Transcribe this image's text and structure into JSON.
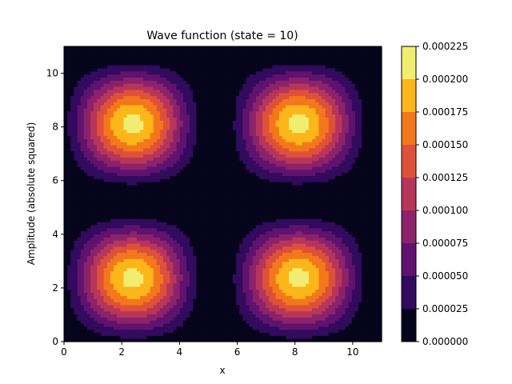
{
  "chart_data": {
    "type": "contourf",
    "title": "Wave function (state = 10)",
    "xlabel": "x",
    "ylabel": "Amplitude (absolute squared)",
    "xlim": [
      0,
      11
    ],
    "ylim": [
      0,
      11
    ],
    "x_ticks": [
      0,
      2,
      4,
      6,
      8,
      10
    ],
    "y_ticks": [
      0,
      2,
      4,
      6,
      8,
      10
    ],
    "field": {
      "form": "A * sin^2(pi*(x+0.5)/5.75) * sin^2(pi*(y+0.5)/5.75)",
      "peak_value": 0.0002081,
      "peaks": [
        [
          2.0,
          2.0
        ],
        [
          9.0,
          2.0
        ],
        [
          2.0,
          9.0
        ],
        [
          9.0,
          9.0
        ]
      ]
    },
    "levels": [
      0.0,
      2.5e-05,
      5e-05,
      7.5e-05,
      0.0001,
      0.000125,
      0.00015,
      0.000175,
      0.0002,
      0.000225
    ],
    "colorbar_tick_labels": [
      "0.000000",
      "0.000025",
      "0.000050",
      "0.000075",
      "0.000100",
      "0.000125",
      "0.000150",
      "0.000175",
      "0.000200",
      "0.000225"
    ],
    "level_colors": [
      "#07051c",
      "#320a5e",
      "#5f136e",
      "#8b226a",
      "#b7355b",
      "#dd513a",
      "#f4771c",
      "#fbb61a",
      "#f1ed71"
    ],
    "colormap": "inferno",
    "grid": false
  }
}
